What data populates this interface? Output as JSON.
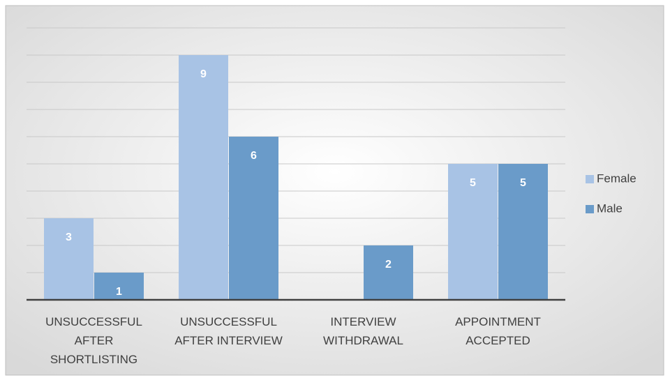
{
  "chart_data": {
    "type": "bar",
    "categories": [
      "UNSUCCESSFUL AFTER SHORTLISTING",
      "UNSUCCESSFUL AFTER INTERVIEW",
      "INTERVIEW WITHDRAWAL",
      "APPOINTMENT ACCEPTED"
    ],
    "series": [
      {
        "name": "Female",
        "color": "#a8c3e5",
        "values": [
          3,
          9,
          0,
          5
        ]
      },
      {
        "name": "Male",
        "color": "#6a9bc9",
        "values": [
          1,
          6,
          2,
          5
        ]
      }
    ],
    "ylim": [
      0,
      10
    ],
    "yticks": [
      0,
      1,
      2,
      3,
      4,
      5,
      6,
      7,
      8,
      9,
      10
    ],
    "grid": true,
    "legend": "right"
  }
}
